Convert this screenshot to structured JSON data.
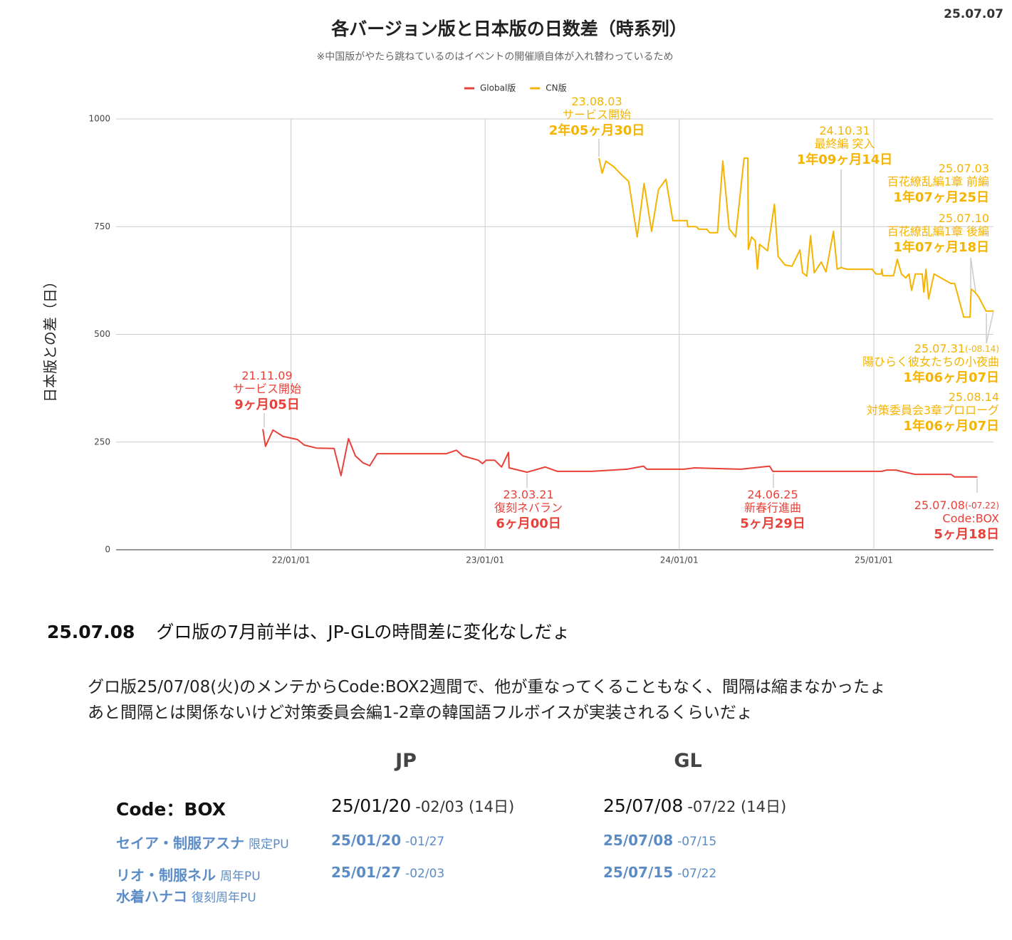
{
  "header_date": "25.07.07",
  "chart_data": {
    "type": "line",
    "title": "各バージョン版と日本版の日数差（時系列）",
    "subtitle": "※中国版がやたら跳ねているのはイベントの開催順自体が入れ替わっているため",
    "ylabel": "日本版との差（日）",
    "legend": "top",
    "grid": true,
    "xlim": [
      "2021-02-06",
      "2025-08-14"
    ],
    "xticks": [
      {
        "value": "2022-01-01",
        "label": "22/01/01"
      },
      {
        "value": "2023-01-01",
        "label": "23/01/01"
      },
      {
        "value": "2024-01-01",
        "label": "24/01/01"
      },
      {
        "value": "2025-01-01",
        "label": "25/01/01"
      }
    ],
    "ylim": [
      0,
      1000
    ],
    "yticks": [
      0,
      250,
      500,
      750,
      1000
    ],
    "series": [
      {
        "name": "Global版",
        "color": "#e8413a",
        "x": [
          "2021-11-09",
          "2021-11-14",
          "2021-11-28",
          "2021-12-17",
          "2022-01-13",
          "2022-01-26",
          "2022-02-18",
          "2022-03-23",
          "2022-04-05",
          "2022-04-19",
          "2022-05-02",
          "2022-05-16",
          "2022-05-29",
          "2022-06-12",
          "2022-07-22",
          "2022-10-20",
          "2022-11-08",
          "2022-11-20",
          "2022-12-19",
          "2022-12-27",
          "2023-01-03",
          "2023-01-19",
          "2023-02-01",
          "2023-02-14",
          "2023-02-15",
          "2023-03-21",
          "2023-04-24",
          "2023-05-17",
          "2023-07-20",
          "2023-09-25",
          "2023-10-26",
          "2023-11-01",
          "2024-01-10",
          "2024-01-30",
          "2024-04-26",
          "2024-06-19",
          "2024-06-25",
          "2024-10-02",
          "2025-01-16",
          "2025-01-25",
          "2025-02-12",
          "2025-02-21",
          "2025-03-20",
          "2025-05-26",
          "2025-06-02",
          "2025-07-08",
          "2025-07-15"
        ],
        "values": [
          280,
          240,
          278,
          263,
          256,
          243,
          236,
          235,
          172,
          258,
          218,
          202,
          195,
          223,
          223,
          223,
          231,
          218,
          208,
          200,
          208,
          208,
          192,
          226,
          190,
          180,
          192,
          182,
          182,
          187,
          194,
          187,
          187,
          190,
          187,
          194,
          182,
          182,
          182,
          185,
          185,
          182,
          175,
          175,
          169,
          169,
          169
        ]
      },
      {
        "name": "CN版",
        "color": "#f4b400",
        "x": [
          "2023-08-03",
          "2023-08-09",
          "2023-08-16",
          "2023-08-31",
          "2023-09-14",
          "2023-09-28",
          "2023-10-14",
          "2023-10-27",
          "2023-11-10",
          "2023-11-23",
          "2023-12-07",
          "2023-12-20",
          "2024-01-16",
          "2024-01-17",
          "2024-02-02",
          "2024-02-07",
          "2024-02-22",
          "2024-02-27",
          "2024-03-13",
          "2024-03-23",
          "2024-04-04",
          "2024-04-16",
          "2024-05-02",
          "2024-05-09",
          "2024-05-10",
          "2024-05-16",
          "2024-05-23",
          "2024-05-27",
          "2024-05-31",
          "2024-06-15",
          "2024-06-28",
          "2024-07-02",
          "2024-07-05",
          "2024-07-18",
          "2024-07-31",
          "2024-08-15",
          "2024-08-20",
          "2024-08-28",
          "2024-09-04",
          "2024-09-11",
          "2024-09-24",
          "2024-10-03",
          "2024-10-17",
          "2024-10-24",
          "2024-10-31",
          "2024-11-12",
          "2024-12-29",
          "2025-01-05",
          "2025-01-15",
          "2025-01-16",
          "2025-01-18",
          "2025-02-07",
          "2025-02-14",
          "2025-02-22",
          "2025-03-02",
          "2025-03-08",
          "2025-03-13",
          "2025-03-20",
          "2025-04-02",
          "2025-04-05",
          "2025-04-09",
          "2025-04-14",
          "2025-04-24",
          "2025-05-26",
          "2025-06-02",
          "2025-06-19",
          "2025-07-01",
          "2025-07-03",
          "2025-07-10",
          "2025-07-17",
          "2025-07-31",
          "2025-08-14"
        ],
        "values": [
          909,
          874,
          902,
          889,
          871,
          855,
          726,
          850,
          739,
          836,
          860,
          764,
          764,
          750,
          750,
          744,
          744,
          736,
          736,
          902,
          745,
          726,
          909,
          909,
          697,
          726,
          717,
          651,
          709,
          694,
          802,
          731,
          681,
          661,
          658,
          696,
          643,
          635,
          729,
          643,
          668,
          645,
          739,
          651,
          655,
          651,
          651,
          640,
          640,
          651,
          636,
          636,
          674,
          640,
          631,
          640,
          602,
          640,
          640,
          598,
          651,
          582,
          640,
          618,
          618,
          540,
          540,
          605,
          598,
          587,
          554,
          554
        ]
      }
    ],
    "annotations": [
      {
        "date": "21.11.09",
        "event": "サービス開始",
        "gap": "9ヶ月05日",
        "color": "#e8413a"
      },
      {
        "date": "23.03.21",
        "event": "復刻ネバラン",
        "gap": "6ヶ月00日",
        "color": "#e8413a"
      },
      {
        "date": "24.06.25",
        "event": "新春行進曲",
        "gap": "5ヶ月29日",
        "color": "#e8413a"
      },
      {
        "date": "25.07.08",
        "range": "(-07.22)",
        "event": "Code:BOX",
        "gap": "5ヶ月18日",
        "color": "#e8413a"
      },
      {
        "date": "23.08.03",
        "event": "サービス開始",
        "gap": "2年05ヶ月30日",
        "color": "#f4b400"
      },
      {
        "date": "24.10.31",
        "event": "最終編 突入",
        "gap": "1年09ヶ月14日",
        "color": "#f4b400"
      },
      {
        "date": "25.07.03",
        "event": "百花繚乱編1章 前編",
        "gap": "1年07ヶ月25日",
        "color": "#f4b400"
      },
      {
        "date": "25.07.10",
        "event": "百花繚乱編1章 後編",
        "gap": "1年07ヶ月18日",
        "color": "#f4b400"
      },
      {
        "date": "25.07.31",
        "range": "(-08.14)",
        "event": "陽ひらく彼女たちの小夜曲",
        "gap": "1年06ヶ月07日",
        "color": "#f4b400"
      },
      {
        "date": "25.08.14",
        "event": "対策委員会3章プロローグ",
        "gap": "1年06ヶ月07日",
        "color": "#f4b400"
      }
    ]
  },
  "note": {
    "date": "25.07.08",
    "headline": "グロ版の7月前半は、JP-GLの時間差に変化なしだょ",
    "lines": [
      "グロ版25/07/08(火)のメンテからCode:BOX2週間で、他が重なってくることもなく、間隔は縮まなかったょ",
      "あと間隔とは関係ないけど対策委員会編1-2章の韓国語フルボイスが実装されるくらいだょ"
    ]
  },
  "table": {
    "header": [
      "JP",
      "GL"
    ],
    "rows": [
      {
        "names": [
          [
            "Code：BOX"
          ]
        ],
        "jp": [
          "25/01/20",
          "-02/03 (14日)"
        ],
        "gl": [
          "25/07/08",
          "-07/22 (14日)"
        ]
      },
      {
        "names": [
          [
            "セイア・制服アスナ",
            "限定PU"
          ]
        ],
        "jp": [
          "25/01/20",
          "-01/27"
        ],
        "gl": [
          "25/07/08",
          "-07/15"
        ]
      },
      {
        "names": [
          [
            "リオ・制服ネル",
            "周年PU"
          ],
          [
            "水着ハナコ",
            "復刻周年PU"
          ]
        ],
        "jp": [
          "25/01/27",
          "-02/03"
        ],
        "gl": [
          "25/07/15",
          "-07/22"
        ]
      }
    ]
  }
}
